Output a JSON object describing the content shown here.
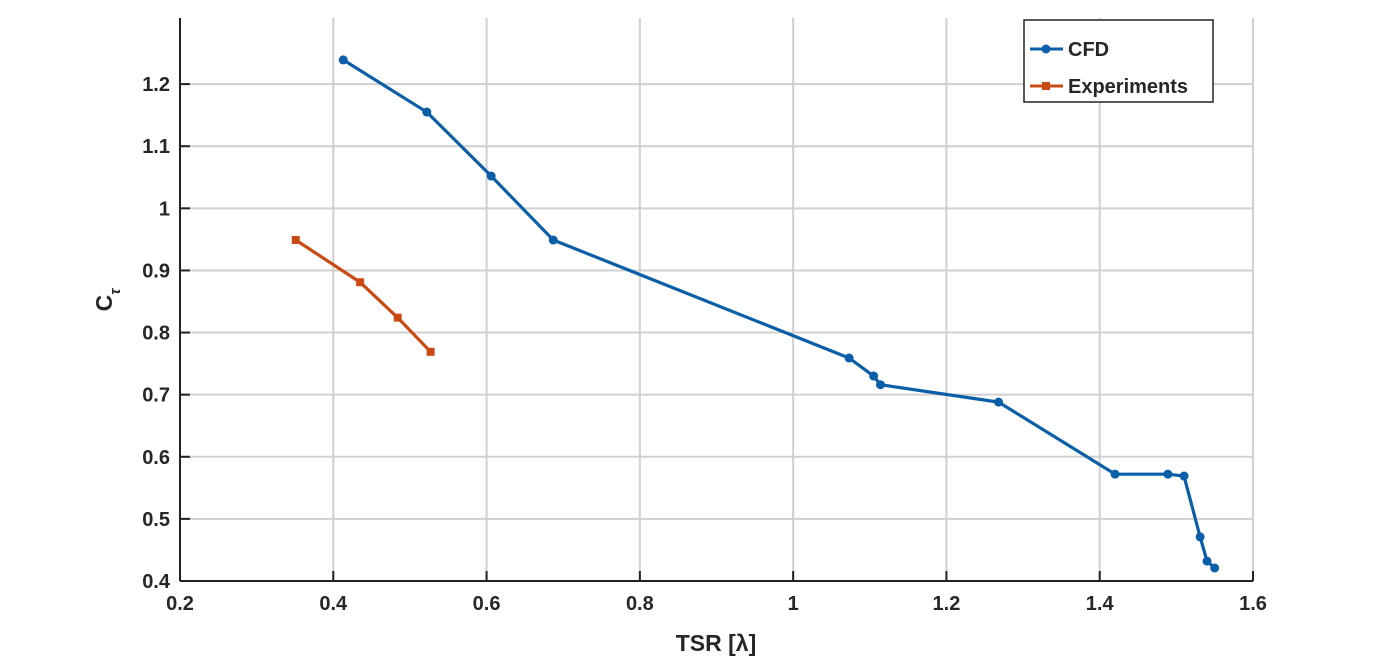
{
  "chart_data": {
    "type": "line",
    "title": "",
    "xlabel": "TSR [λ]",
    "ylabel": "C_τ",
    "ylabel_main": "C",
    "ylabel_sub": "τ",
    "xlim": [
      0.2,
      1.6
    ],
    "ylim": [
      0.4,
      1.3
    ],
    "xticks": [
      0.2,
      0.4,
      0.6,
      0.8,
      1,
      1.2,
      1.4,
      1.6
    ],
    "xtick_labels": [
      "0.2",
      "0.4",
      "0.6",
      "0.8",
      "1",
      "1.2",
      "1.4",
      "1.6"
    ],
    "yticks": [
      0.4,
      0.5,
      0.6,
      0.7,
      0.8,
      0.9,
      1,
      1.1,
      1.2
    ],
    "ytick_labels": [
      "0.4",
      "0.5",
      "0.6",
      "0.7",
      "0.8",
      "0.9",
      "1",
      "1.1",
      "1.2"
    ],
    "grid": true,
    "legend_position": "top-right",
    "series": [
      {
        "name": "CFD",
        "color": "#0b5ea8",
        "marker": "circle",
        "x": [
          0.413,
          0.522,
          0.606,
          0.687,
          1.073,
          1.105,
          1.114,
          1.268,
          1.42,
          1.489,
          1.51,
          1.531,
          1.54,
          1.55
        ],
        "y": [
          1.239,
          1.155,
          1.052,
          0.949,
          0.759,
          0.73,
          0.716,
          0.688,
          0.572,
          0.572,
          0.569,
          0.471,
          0.432,
          0.421
        ]
      },
      {
        "name": "Experiments",
        "color": "#c94a12",
        "marker": "square",
        "x": [
          0.351,
          0.435,
          0.484,
          0.527
        ],
        "y": [
          0.949,
          0.881,
          0.824,
          0.769
        ]
      }
    ]
  }
}
